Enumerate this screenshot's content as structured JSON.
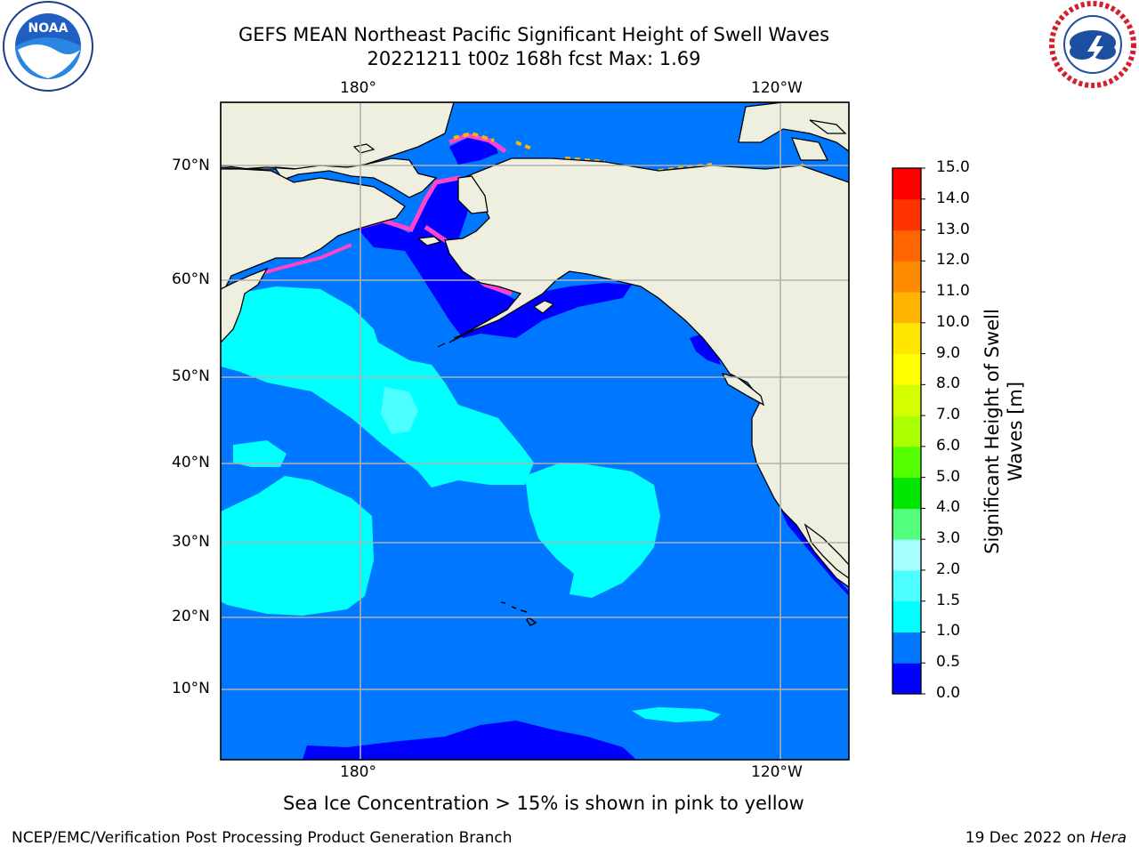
{
  "title": {
    "line1": "GEFS MEAN Northeast Pacific Significant Height of Swell Waves",
    "line2": "20221211 t00z 168h fcst   Max: 1.69"
  },
  "map": {
    "lon_labels": {
      "top": [
        "180°",
        "120°W"
      ],
      "bottom": [
        "180°",
        "120°W"
      ]
    },
    "lat_labels": [
      "70°N",
      "60°N",
      "50°N",
      "40°N",
      "30°N",
      "20°N",
      "10°N"
    ],
    "land_color": "#efefe0",
    "place_hint": "Alaska, Bering Sea, Hawaii, North American west coast"
  },
  "colorbar": {
    "title_line1": "Significant Height of Swell",
    "title_line2": "Waves [m]",
    "ticks": [
      "15.0",
      "14.0",
      "13.0",
      "12.0",
      "11.0",
      "10.0",
      "9.0",
      "8.0",
      "7.0",
      "6.0",
      "5.0",
      "4.0",
      "3.0",
      "2.0",
      "1.5",
      "1.0",
      "0.5",
      "0.0"
    ],
    "colors": [
      "#0000ff",
      "#0077ff",
      "#00ffff",
      "#4cffff",
      "#a8ffff",
      "#54ff7e",
      "#00e600",
      "#54ff00",
      "#aaff00",
      "#d4ff00",
      "#ffff00",
      "#ffe600",
      "#ffb400",
      "#ff8c00",
      "#ff6600",
      "#ff3300",
      "#ff0000"
    ]
  },
  "footer": {
    "note": "Sea Ice Concentration > 15% is shown in pink to yellow",
    "credit": "NCEP/EMC/Verification Post Processing Product Generation Branch",
    "date_prefix": "19 Dec 2022 on ",
    "host": "Hera"
  },
  "logos": {
    "left": "noaa-logo",
    "right": "nws-logo",
    "left_text": "NOAA"
  }
}
